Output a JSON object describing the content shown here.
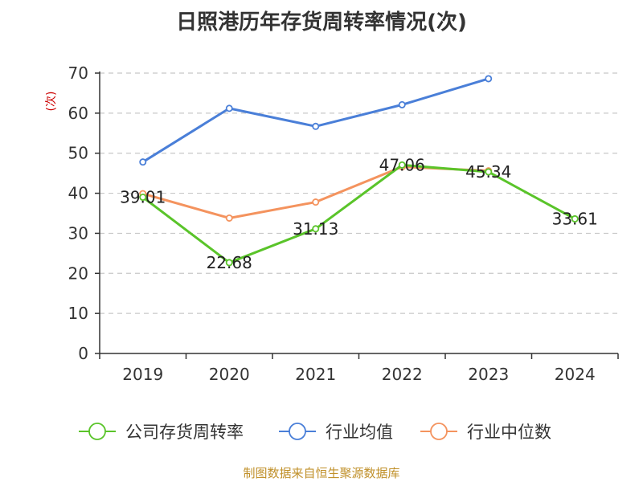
{
  "chart_data": {
    "type": "line",
    "title": "日照港历年存货周转率情况(次)",
    "ylabel": "(次)",
    "xlabel": "",
    "categories": [
      "2019",
      "2020",
      "2021",
      "2022",
      "2023",
      "2024"
    ],
    "ylim": [
      0,
      70
    ],
    "yticks": [
      0,
      10,
      20,
      30,
      40,
      50,
      60,
      70
    ],
    "grid": true,
    "legend_position": "bottom",
    "series": [
      {
        "name": "公司存货周转率",
        "color": "#5ac42a",
        "values": [
          39.01,
          22.68,
          31.13,
          47.06,
          45.34,
          33.61
        ],
        "labels": [
          "39.01",
          "22.68",
          "31.13",
          "47.06",
          "45.34",
          "33.61"
        ]
      },
      {
        "name": "行业均值",
        "color": "#4a7fd8",
        "values": [
          47.8,
          61.2,
          56.7,
          62.1,
          68.6,
          null
        ]
      },
      {
        "name": "行业中位数",
        "color": "#f4935e",
        "values": [
          39.9,
          33.8,
          37.8,
          46.6,
          45.6,
          null
        ]
      }
    ]
  },
  "footer": {
    "source": "制图数据来自恒生聚源数据库"
  }
}
